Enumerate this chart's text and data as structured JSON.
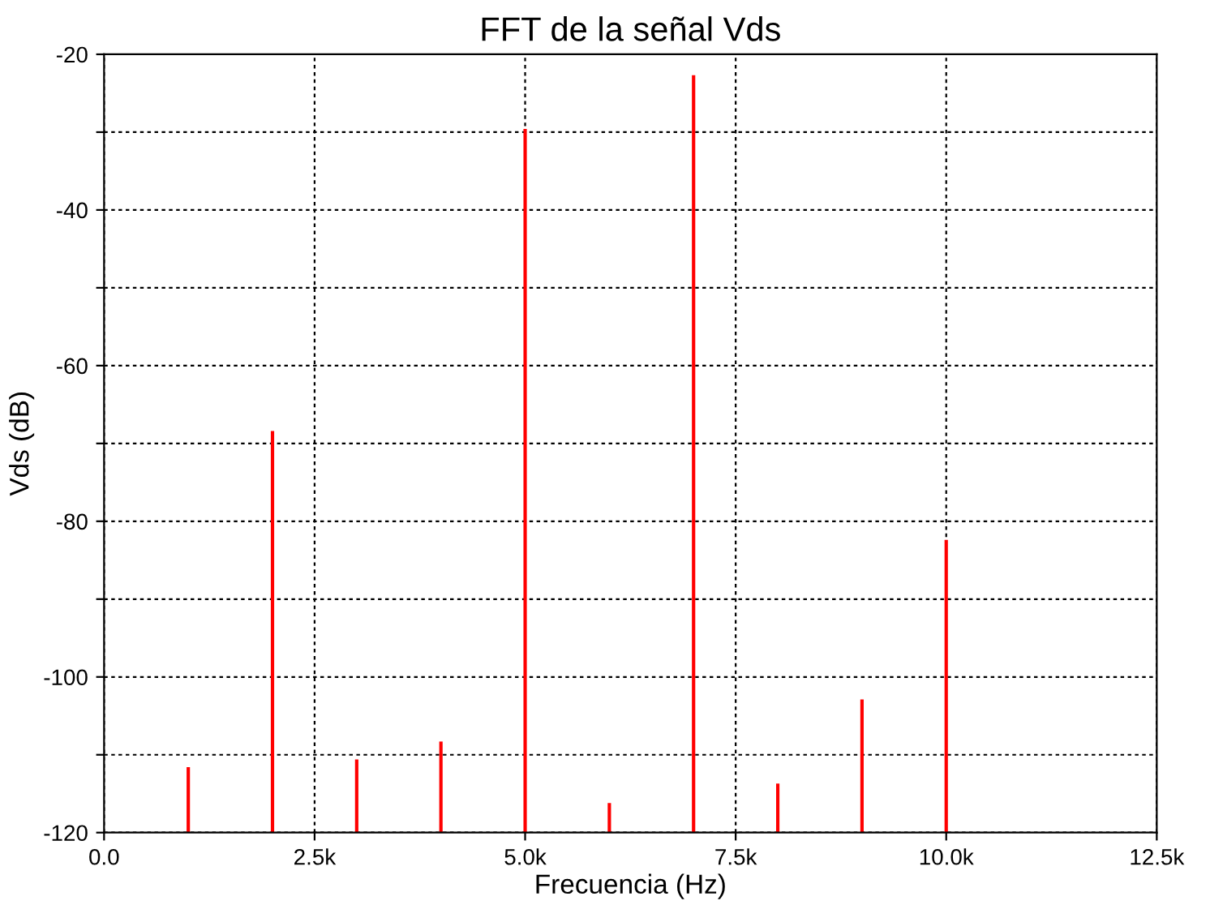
{
  "chart_data": {
    "type": "bar",
    "title": "FFT de la señal Vds",
    "xlabel": "Frecuencia (Hz)",
    "ylabel": "Vds (dB)",
    "x": [
      1000,
      2000,
      3000,
      4000,
      5000,
      6000,
      7000,
      8000,
      9000,
      10000
    ],
    "base": [
      -120,
      -120,
      -120,
      -120,
      -120,
      -120,
      -120,
      -120,
      -120,
      -120
    ],
    "values": [
      8.4,
      51.6,
      9.4,
      11.7,
      90.4,
      3.8,
      97.3,
      6.3,
      17.1,
      37.6
    ],
    "color": "#ff0000",
    "xlim": [
      0,
      12500
    ],
    "xticks": [
      {
        "value": 0,
        "label": "0.0"
      },
      {
        "value": 2500,
        "label": "2.5k"
      },
      {
        "value": 5000,
        "label": "5.0k"
      },
      {
        "value": 7500,
        "label": "7.5k"
      },
      {
        "value": 10000,
        "label": "10.0k"
      },
      {
        "value": 12500,
        "label": "12.5k"
      }
    ],
    "ylim": [
      -120,
      -20
    ],
    "yticks": [
      -120,
      {
        "value": -110,
        "label": null
      },
      -100,
      {
        "value": -90,
        "label": null
      },
      -80,
      {
        "value": -70,
        "label": null
      },
      -60,
      {
        "value": -50,
        "label": null
      },
      -40,
      {
        "value": -30,
        "label": null
      },
      -20
    ],
    "grid": true,
    "legend": false
  }
}
